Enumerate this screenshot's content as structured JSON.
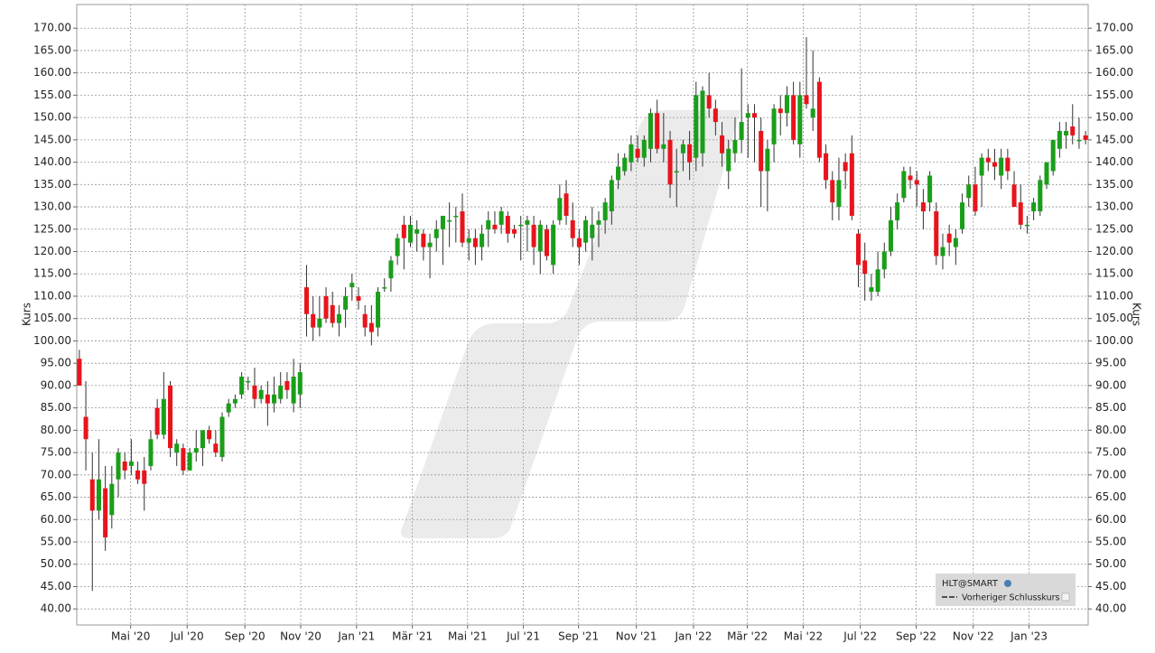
{
  "chart_data": {
    "type": "candlestick",
    "ylabel": "Kurs",
    "ylim": [
      36.4,
      175.3
    ],
    "xlim": [
      -0.4,
      155.4
    ],
    "grid": true,
    "legend": "bottom-right",
    "yticks": [
      {
        "value": 40,
        "label": "40.00"
      },
      {
        "value": 45,
        "label": "45.00"
      },
      {
        "value": 50,
        "label": "50.00"
      },
      {
        "value": 55,
        "label": "55.00"
      },
      {
        "value": 60,
        "label": "60.00"
      },
      {
        "value": 65,
        "label": "65.00"
      },
      {
        "value": 70,
        "label": "70.00"
      },
      {
        "value": 75,
        "label": "75.00"
      },
      {
        "value": 80,
        "label": "80.00"
      },
      {
        "value": 85,
        "label": "85.00"
      },
      {
        "value": 90,
        "label": "90.00"
      },
      {
        "value": 95,
        "label": "95.00"
      },
      {
        "value": 100,
        "label": "100.00"
      },
      {
        "value": 105,
        "label": "105.00"
      },
      {
        "value": 110,
        "label": "110.00"
      },
      {
        "value": 115,
        "label": "115.00"
      },
      {
        "value": 120,
        "label": "120.00"
      },
      {
        "value": 125,
        "label": "125.00"
      },
      {
        "value": 130,
        "label": "130.00"
      },
      {
        "value": 135,
        "label": "135.00"
      },
      {
        "value": 140,
        "label": "140.00"
      },
      {
        "value": 145,
        "label": "145.00"
      },
      {
        "value": 150,
        "label": "150.00"
      },
      {
        "value": 155,
        "label": "155.00"
      },
      {
        "value": 160,
        "label": "160.00"
      },
      {
        "value": 165,
        "label": "165.00"
      },
      {
        "value": 170,
        "label": "170.00"
      }
    ],
    "xticks": [
      {
        "value": 7.9,
        "label": "Mai '20"
      },
      {
        "value": 16.6,
        "label": "Jul '20"
      },
      {
        "value": 25.5,
        "label": "Sep '20"
      },
      {
        "value": 34.1,
        "label": "Nov '20"
      },
      {
        "value": 42.7,
        "label": "Jan '21"
      },
      {
        "value": 51.3,
        "label": "Mär '21"
      },
      {
        "value": 59.8,
        "label": "Mai '21"
      },
      {
        "value": 68.4,
        "label": "Jul '21"
      },
      {
        "value": 76.9,
        "label": "Sep '21"
      },
      {
        "value": 85.8,
        "label": "Nov '21"
      },
      {
        "value": 94.6,
        "label": "Jan '22"
      },
      {
        "value": 102.9,
        "label": "Mär '22"
      },
      {
        "value": 111.5,
        "label": "Mai '22"
      },
      {
        "value": 120.3,
        "label": "Jul '22"
      },
      {
        "value": 128.9,
        "label": "Sep '22"
      },
      {
        "value": 137.7,
        "label": "Nov '22"
      },
      {
        "value": 146.3,
        "label": "Jan '23"
      }
    ],
    "reference_line": {
      "name": "Vorheriger Schlusskurs"
    },
    "series": [
      {
        "name": "HLT@SMART",
        "up_color": "#1a9e1a",
        "down_color": "#e8141c",
        "open": [
          96,
          83,
          69,
          62,
          67,
          61,
          69,
          73,
          72,
          71,
          71,
          72,
          85,
          79,
          90,
          75,
          76,
          71,
          75,
          76,
          80,
          77,
          74,
          84,
          86,
          88,
          91,
          90,
          87,
          88,
          86,
          87,
          91,
          86,
          88,
          112,
          106,
          103,
          110,
          108,
          104,
          107,
          112,
          110,
          106,
          104,
          103,
          112,
          114,
          119,
          126,
          122,
          124,
          124,
          121,
          123,
          125,
          127,
          128,
          129,
          122,
          123,
          121,
          125,
          126,
          126,
          128,
          125,
          126,
          126,
          126,
          120,
          125,
          117,
          127,
          133,
          127,
          123,
          122,
          123,
          126,
          127,
          129,
          136,
          138,
          140,
          143,
          141,
          143,
          151,
          143,
          145,
          138,
          142,
          144,
          141,
          142,
          155,
          152,
          146,
          138,
          142,
          145,
          150,
          151,
          147,
          138,
          144,
          152,
          151,
          155,
          144,
          155,
          150,
          158,
          142,
          136,
          130,
          140,
          142,
          124,
          118,
          111,
          111,
          116,
          120,
          127,
          132,
          137,
          136,
          131,
          131,
          129,
          119,
          124,
          121,
          125,
          132,
          135,
          137,
          141,
          140,
          137,
          141,
          135,
          131,
          126,
          129,
          129,
          135,
          138,
          143,
          146,
          148,
          145,
          146
        ],
        "high": [
          98,
          91,
          75,
          78,
          72,
          72,
          76,
          75,
          78,
          73,
          74,
          80,
          87,
          93,
          91,
          78,
          77,
          76,
          80,
          80,
          81,
          80,
          84,
          87,
          88,
          93,
          92,
          94,
          90,
          91,
          92,
          93,
          93,
          96,
          95,
          117,
          110,
          110,
          112,
          111,
          108,
          112,
          115,
          112,
          108,
          108,
          112,
          114,
          119,
          124,
          128,
          128,
          127,
          125,
          124,
          127,
          128,
          131,
          130,
          133,
          125,
          125,
          126,
          129,
          129,
          130,
          129,
          126,
          128,
          128,
          128,
          127,
          126,
          127,
          135,
          136,
          131,
          125,
          128,
          130,
          129,
          132,
          137,
          142,
          142,
          146,
          146,
          146,
          152,
          154,
          151,
          147,
          143,
          145,
          147,
          158,
          157,
          160,
          154,
          149,
          145,
          150,
          161,
          153,
          153,
          150,
          145,
          153,
          155,
          157,
          158,
          158,
          168,
          165,
          159,
          144,
          138,
          141,
          142,
          146,
          125,
          122,
          115,
          120,
          122,
          130,
          133,
          139,
          139,
          138,
          134,
          138,
          131,
          124,
          126,
          125,
          133,
          137,
          139,
          142,
          143,
          143,
          143,
          143,
          138,
          135,
          128,
          132,
          137,
          140,
          145,
          149,
          149,
          153,
          150,
          147
        ],
        "low": [
          90,
          71,
          44,
          60,
          53,
          58,
          65,
          69,
          70,
          68,
          62,
          71,
          78,
          78,
          74,
          72,
          70,
          71,
          73,
          72,
          77,
          74,
          73,
          83,
          85,
          87,
          89,
          85,
          86,
          81,
          84,
          86,
          87,
          84,
          85,
          101,
          100,
          101,
          104,
          103,
          101,
          103,
          109,
          107,
          101,
          99,
          101,
          111,
          111,
          117,
          116,
          121,
          120,
          118,
          114,
          120,
          117,
          121,
          122,
          121,
          118,
          117,
          118,
          121,
          124,
          124,
          122,
          123,
          118,
          120,
          117,
          115,
          118,
          115,
          126,
          126,
          121,
          117,
          120,
          118,
          121,
          124,
          126,
          134,
          137,
          138,
          140,
          139,
          140,
          142,
          140,
          132,
          130,
          138,
          136,
          138,
          139,
          150,
          146,
          139,
          134,
          140,
          142,
          141,
          140,
          130,
          129,
          140,
          146,
          148,
          144,
          141,
          152,
          147,
          140,
          134,
          127,
          127,
          134,
          127,
          112,
          109,
          109,
          110,
          114,
          119,
          125,
          131,
          134,
          130,
          125,
          129,
          117,
          116,
          119,
          117,
          124,
          130,
          128,
          130,
          138,
          136,
          134,
          136,
          130,
          125,
          124,
          127,
          128,
          134,
          137,
          141,
          143,
          144,
          143,
          144
        ],
        "close": [
          90,
          78,
          62,
          69,
          56,
          68,
          75,
          71,
          73,
          69,
          68,
          78,
          79,
          87,
          76,
          77,
          71,
          75,
          76,
          80,
          78,
          75,
          83,
          86,
          87,
          92,
          91,
          87,
          89,
          86,
          88,
          90,
          89,
          92,
          93,
          106,
          103,
          105,
          105,
          104,
          106,
          110,
          113,
          109,
          103,
          102,
          111,
          112,
          118,
          123,
          123,
          126,
          125,
          121,
          122,
          125,
          128,
          127,
          128,
          122,
          123,
          121,
          124,
          127,
          125,
          129,
          124,
          124,
          126,
          127,
          121,
          126,
          119,
          126,
          132,
          128,
          123,
          121,
          127,
          126,
          127,
          131,
          136,
          139,
          141,
          144,
          141,
          145,
          151,
          143,
          144,
          135,
          138,
          144,
          140,
          155,
          156,
          152,
          149,
          142,
          143,
          145,
          149,
          151,
          150,
          138,
          143,
          152,
          151,
          155,
          145,
          155,
          153,
          152,
          141,
          136,
          131,
          136,
          138,
          128,
          117,
          115,
          112,
          116,
          120,
          127,
          131,
          138,
          136,
          135,
          129,
          137,
          119,
          121,
          122,
          123,
          131,
          135,
          129,
          141,
          140,
          139,
          141,
          138,
          130,
          126,
          126,
          131,
          136,
          140,
          145,
          147,
          147,
          146,
          145,
          145
        ]
      }
    ]
  }
}
